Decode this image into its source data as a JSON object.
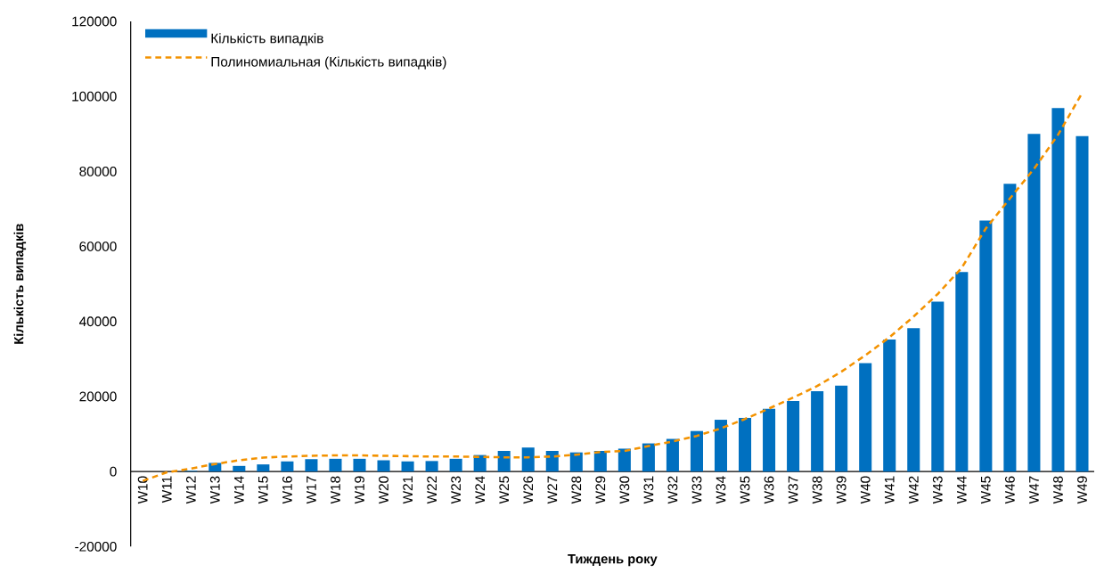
{
  "chart_data": {
    "type": "bar",
    "categories": [
      "W10",
      "W11",
      "W12",
      "W13",
      "W14",
      "W15",
      "W16",
      "W17",
      "W18",
      "W19",
      "W20",
      "W21",
      "W22",
      "W23",
      "W24",
      "W25",
      "W26",
      "W27",
      "W28",
      "W29",
      "W30",
      "W31",
      "W32",
      "W33",
      "W34",
      "W35",
      "W36",
      "W37",
      "W38",
      "W39",
      "W40",
      "W41",
      "W42",
      "W43",
      "W44",
      "W45",
      "W46",
      "W47",
      "W48",
      "W49"
    ],
    "series": [
      {
        "name": "Кількість випадків",
        "color": "#0070c0",
        "values": [
          0,
          0,
          200,
          2300,
          1500,
          1900,
          2700,
          3300,
          3400,
          3400,
          3000,
          2700,
          2800,
          3400,
          4400,
          5500,
          6400,
          5500,
          5100,
          5500,
          6100,
          7500,
          8700,
          10800,
          13800,
          14300,
          16700,
          18800,
          21400,
          22900,
          28900,
          35200,
          38200,
          45300,
          53200,
          66900,
          76700,
          90000,
          96900,
          89400
        ]
      },
      {
        "name": "Полиномиальная (Кількість випадків)",
        "type": "line",
        "line_style": "dashed",
        "color": "#f39200",
        "values": [
          -2500,
          -200,
          800,
          2000,
          3000,
          3700,
          4000,
          4200,
          4300,
          4300,
          4200,
          4100,
          4000,
          4000,
          3900,
          3800,
          3800,
          4000,
          4500,
          5200,
          5500,
          6800,
          8000,
          9500,
          11500,
          14000,
          16800,
          19700,
          22800,
          26600,
          31000,
          35800,
          41300,
          47300,
          54300,
          64800,
          72800,
          80700,
          89800,
          100900
        ]
      }
    ],
    "xlabel": "Тиждень року",
    "ylabel": "Кількість випадків",
    "ylim": [
      -20000,
      120000
    ],
    "yticks": [
      -20000,
      0,
      20000,
      40000,
      60000,
      80000,
      100000,
      120000
    ],
    "legend": "top left"
  }
}
